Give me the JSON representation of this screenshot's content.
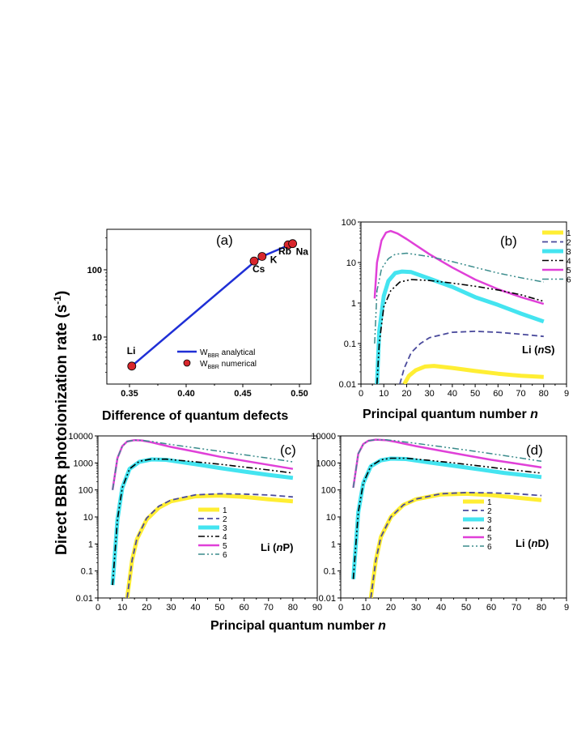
{
  "figure": {
    "ylabel_main": "Direct BBR photoionization rate (s",
    "ylabel_sup": "-1",
    "ylabel_close": ")",
    "xlabel_bottom": "Principal quantum number ",
    "xlabel_n": "n"
  },
  "colors": {
    "analytical": "#1f2fd6",
    "numerical": "#d8262c",
    "s1": "#ffee33",
    "s2": "#4a4a9c",
    "s3": "#44e4f0",
    "s4": "#000000",
    "s5": "#e040d8",
    "s6": "#3a8c8c"
  },
  "chart_data": [
    {
      "id": "a",
      "type": "line+scatter",
      "panel_label": "(a)",
      "xlabel": "Difference of quantum defects",
      "xlim": [
        0.33,
        0.51
      ],
      "ylim": [
        2,
        400
      ],
      "yscale": "log",
      "xticks": [
        "0.35",
        "0.40",
        "0.45",
        "0.50"
      ],
      "yticks": [
        "10",
        "100"
      ],
      "series": [
        {
          "name": "W",
          "sub": "BBR",
          "suffix": " analytical",
          "x": [
            0.352,
            0.46,
            0.468,
            0.49,
            0.494
          ],
          "y": [
            3.7,
            130,
            160,
            230,
            240
          ]
        },
        {
          "name": "W",
          "sub": "BBR",
          "suffix": " numerical",
          "x": [
            0.352,
            0.46,
            0.467,
            0.49,
            0.494
          ],
          "y": [
            3.7,
            135,
            158,
            235,
            245
          ],
          "labels": [
            "Li",
            "Cs",
            "K",
            "Rb",
            "Na"
          ]
        }
      ]
    },
    {
      "id": "b",
      "type": "line",
      "panel_label": "(b)",
      "xlabel": "Principal quantum number ",
      "xlabel_n": "n",
      "xlim": [
        0,
        90
      ],
      "ylim": [
        0.01,
        100
      ],
      "yscale": "log",
      "xticks": [
        "0",
        "10",
        "20",
        "30",
        "40",
        "50",
        "60",
        "70",
        "80",
        "9"
      ],
      "yticks": [
        "0.01",
        "0.1",
        "1",
        "10",
        "100"
      ],
      "system_label": [
        "Li (",
        "n",
        "S)"
      ],
      "legend": [
        "1",
        "2",
        "3",
        "4",
        "5",
        "6"
      ],
      "series": [
        {
          "name": "1",
          "x": [
            19,
            21,
            24,
            28,
            32,
            40,
            50,
            60,
            70,
            80
          ],
          "y": [
            0.01,
            0.016,
            0.022,
            0.027,
            0.028,
            0.025,
            0.021,
            0.018,
            0.016,
            0.015
          ]
        },
        {
          "name": "2",
          "x": [
            17,
            19,
            22,
            26,
            30,
            40,
            50,
            60,
            70,
            80
          ],
          "y": [
            0.01,
            0.025,
            0.06,
            0.1,
            0.14,
            0.19,
            0.2,
            0.19,
            0.17,
            0.15
          ]
        },
        {
          "name": "3",
          "x": [
            7,
            8,
            10,
            12,
            15,
            18,
            22,
            30,
            40,
            50,
            60,
            70,
            80
          ],
          "y": [
            0.01,
            0.2,
            1.5,
            3.5,
            5.5,
            6,
            5.8,
            4,
            2.5,
            1.4,
            0.9,
            0.55,
            0.35
          ]
        },
        {
          "name": "4",
          "x": [
            7,
            8,
            10,
            13,
            17,
            22,
            30,
            40,
            50,
            60,
            70,
            80
          ],
          "y": [
            0.01,
            0.1,
            0.8,
            2,
            3.3,
            3.8,
            3.6,
            3.1,
            2.6,
            2.1,
            1.6,
            1.1
          ]
        },
        {
          "name": "5",
          "x": [
            6,
            7,
            9,
            11,
            13,
            16,
            20,
            30,
            40,
            50,
            60,
            70,
            80
          ],
          "y": [
            1.3,
            10,
            35,
            55,
            60,
            52,
            38,
            16,
            7.5,
            3.8,
            2.2,
            1.4,
            0.95
          ]
        },
        {
          "name": "6",
          "x": [
            6,
            7,
            9,
            12,
            15,
            20,
            30,
            40,
            50,
            60,
            70,
            80
          ],
          "y": [
            0.1,
            2,
            7,
            12.5,
            16,
            17,
            14,
            10.5,
            7.6,
            5.5,
            4.2,
            3.3
          ]
        }
      ]
    },
    {
      "id": "c",
      "type": "line",
      "panel_label": "(c)",
      "xlim": [
        0,
        90
      ],
      "ylim": [
        0.01,
        10000
      ],
      "yscale": "log",
      "xticks": [
        "0",
        "10",
        "20",
        "30",
        "40",
        "50",
        "60",
        "70",
        "80",
        "90"
      ],
      "yticks": [
        "0.01",
        "0.1",
        "1",
        "10",
        "100",
        "1000",
        "10000"
      ],
      "system_label": [
        "Li (",
        "n",
        "P)"
      ],
      "legend": [
        "1",
        "2",
        "3",
        "4",
        "5",
        "6"
      ],
      "series": [
        {
          "name": "1",
          "x": [
            12,
            14,
            16,
            20,
            25,
            30,
            40,
            50,
            60,
            70,
            80
          ],
          "y": [
            0.01,
            0.25,
            1.5,
            8,
            22,
            38,
            58,
            62,
            55,
            45,
            38
          ]
        },
        {
          "name": "2",
          "x": [
            12,
            14,
            16,
            20,
            25,
            30,
            40,
            50,
            60,
            70,
            80
          ],
          "y": [
            0.01,
            0.25,
            1.6,
            9,
            25,
            42,
            66,
            72,
            70,
            65,
            55
          ]
        },
        {
          "name": "3",
          "x": [
            6,
            8,
            10,
            13,
            17,
            22,
            28,
            40,
            50,
            60,
            70,
            80
          ],
          "y": [
            0.03,
            8,
            120,
            600,
            1100,
            1350,
            1300,
            900,
            650,
            480,
            360,
            280
          ]
        },
        {
          "name": "4",
          "x": [
            6,
            8,
            10,
            13,
            17,
            22,
            28,
            40,
            50,
            60,
            70,
            80
          ],
          "y": [
            0.03,
            8,
            120,
            600,
            1150,
            1400,
            1380,
            1100,
            900,
            700,
            550,
            420
          ]
        },
        {
          "name": "5",
          "x": [
            6,
            8,
            10,
            12,
            15,
            18,
            22,
            30,
            40,
            50,
            60,
            70,
            80
          ],
          "y": [
            100,
            1500,
            4200,
            6200,
            7000,
            6800,
            5800,
            3900,
            2600,
            1700,
            1200,
            850,
            600
          ]
        },
        {
          "name": "6",
          "x": [
            6,
            8,
            10,
            12,
            15,
            18,
            22,
            30,
            40,
            50,
            60,
            70,
            80
          ],
          "y": [
            100,
            1500,
            4200,
            6200,
            7000,
            6900,
            6200,
            4800,
            3600,
            2700,
            2000,
            1500,
            1100
          ]
        }
      ]
    },
    {
      "id": "d",
      "type": "line",
      "panel_label": "(d)",
      "xlim": [
        0,
        90
      ],
      "ylim": [
        0.01,
        10000
      ],
      "yscale": "log",
      "xticks": [
        "0",
        "10",
        "20",
        "30",
        "40",
        "50",
        "60",
        "70",
        "80",
        "9"
      ],
      "yticks": [
        "0.01",
        "0.1",
        "1",
        "10",
        "100",
        "1000",
        "10000"
      ],
      "system_label": [
        "Li (",
        "n",
        "D)"
      ],
      "legend": [
        "1",
        "2",
        "3",
        "4",
        "5",
        "6"
      ],
      "series": [
        {
          "name": "1",
          "x": [
            12,
            14,
            16,
            20,
            25,
            30,
            40,
            50,
            60,
            70,
            80
          ],
          "y": [
            0.01,
            0.25,
            1.8,
            10,
            28,
            45,
            68,
            72,
            64,
            52,
            42
          ]
        },
        {
          "name": "2",
          "x": [
            12,
            14,
            16,
            20,
            25,
            30,
            40,
            50,
            60,
            70,
            80
          ],
          "y": [
            0.01,
            0.25,
            1.8,
            10,
            28,
            46,
            72,
            80,
            78,
            72,
            62
          ]
        },
        {
          "name": "3",
          "x": [
            5,
            7,
            9,
            12,
            16,
            20,
            26,
            35,
            45,
            55,
            65,
            80
          ],
          "y": [
            0.05,
            15,
            180,
            750,
            1250,
            1450,
            1400,
            1050,
            780,
            580,
            430,
            300
          ]
        },
        {
          "name": "4",
          "x": [
            5,
            7,
            9,
            12,
            16,
            20,
            26,
            35,
            45,
            55,
            65,
            80
          ],
          "y": [
            0.05,
            15,
            180,
            760,
            1300,
            1500,
            1500,
            1250,
            1000,
            780,
            600,
            420
          ]
        },
        {
          "name": "5",
          "x": [
            5,
            7,
            9,
            11,
            14,
            18,
            22,
            30,
            40,
            50,
            60,
            70,
            80
          ],
          "y": [
            120,
            2200,
            5000,
            6600,
            7300,
            7000,
            6000,
            4200,
            2800,
            1900,
            1300,
            950,
            680
          ]
        },
        {
          "name": "6",
          "x": [
            5,
            7,
            9,
            11,
            14,
            18,
            22,
            30,
            40,
            50,
            60,
            70,
            80
          ],
          "y": [
            120,
            2200,
            5000,
            6600,
            7300,
            7200,
            6600,
            5300,
            4000,
            3000,
            2200,
            1600,
            1150
          ]
        }
      ]
    }
  ]
}
